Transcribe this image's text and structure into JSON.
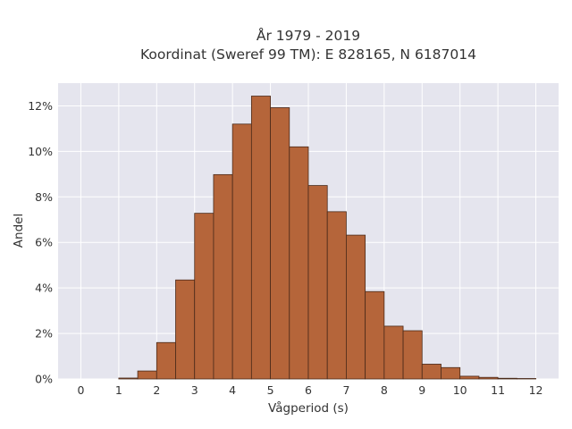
{
  "chart_data": {
    "type": "bar",
    "title_line1": "År 1979 - 2019",
    "title_line2": "Koordinat (Sweref 99 TM): E 828165, N 6187014",
    "xlabel": "Vågperiod (s)",
    "ylabel": "Andel",
    "xlim": [
      -0.6,
      12.6
    ],
    "ylim": [
      0,
      0.13
    ],
    "x_ticks": [
      0,
      1,
      2,
      3,
      4,
      5,
      6,
      7,
      8,
      9,
      10,
      11,
      12
    ],
    "x_tick_labels": [
      "0",
      "1",
      "2",
      "3",
      "4",
      "5",
      "6",
      "7",
      "8",
      "9",
      "10",
      "11",
      "12"
    ],
    "y_ticks": [
      0,
      0.02,
      0.04,
      0.06,
      0.08,
      0.1,
      0.12
    ],
    "y_tick_labels": [
      "0%",
      "2%",
      "4%",
      "6%",
      "8%",
      "10%",
      "12%"
    ],
    "bin_width": 0.5,
    "bins": [
      {
        "x0": 1.0,
        "x1": 1.5,
        "value": 0.0004
      },
      {
        "x0": 1.5,
        "x1": 2.0,
        "value": 0.0035
      },
      {
        "x0": 2.0,
        "x1": 2.5,
        "value": 0.016
      },
      {
        "x0": 2.5,
        "x1": 3.0,
        "value": 0.0435
      },
      {
        "x0": 3.0,
        "x1": 3.5,
        "value": 0.0728
      },
      {
        "x0": 3.5,
        "x1": 4.0,
        "value": 0.0898
      },
      {
        "x0": 4.0,
        "x1": 4.5,
        "value": 0.112
      },
      {
        "x0": 4.5,
        "x1": 5.0,
        "value": 0.1243
      },
      {
        "x0": 5.0,
        "x1": 5.5,
        "value": 0.1192
      },
      {
        "x0": 5.5,
        "x1": 6.0,
        "value": 0.102
      },
      {
        "x0": 6.0,
        "x1": 6.5,
        "value": 0.085
      },
      {
        "x0": 6.5,
        "x1": 7.0,
        "value": 0.0735
      },
      {
        "x0": 7.0,
        "x1": 7.5,
        "value": 0.0632
      },
      {
        "x0": 7.5,
        "x1": 8.0,
        "value": 0.0384
      },
      {
        "x0": 8.0,
        "x1": 8.5,
        "value": 0.0232
      },
      {
        "x0": 8.5,
        "x1": 9.0,
        "value": 0.0212
      },
      {
        "x0": 9.0,
        "x1": 9.5,
        "value": 0.0065
      },
      {
        "x0": 9.5,
        "x1": 10.0,
        "value": 0.005
      },
      {
        "x0": 10.0,
        "x1": 10.5,
        "value": 0.0012
      },
      {
        "x0": 10.5,
        "x1": 11.0,
        "value": 0.0007
      },
      {
        "x0": 11.0,
        "x1": 11.5,
        "value": 0.0003
      },
      {
        "x0": 11.5,
        "x1": 12.0,
        "value": 0.0002
      }
    ],
    "grid": true,
    "legend": "none",
    "colors": {
      "bar_fill": "#b5653a",
      "bar_edge": "#4a2a1a",
      "plot_bg": "#e5e5ee",
      "grid": "#ffffff"
    }
  }
}
